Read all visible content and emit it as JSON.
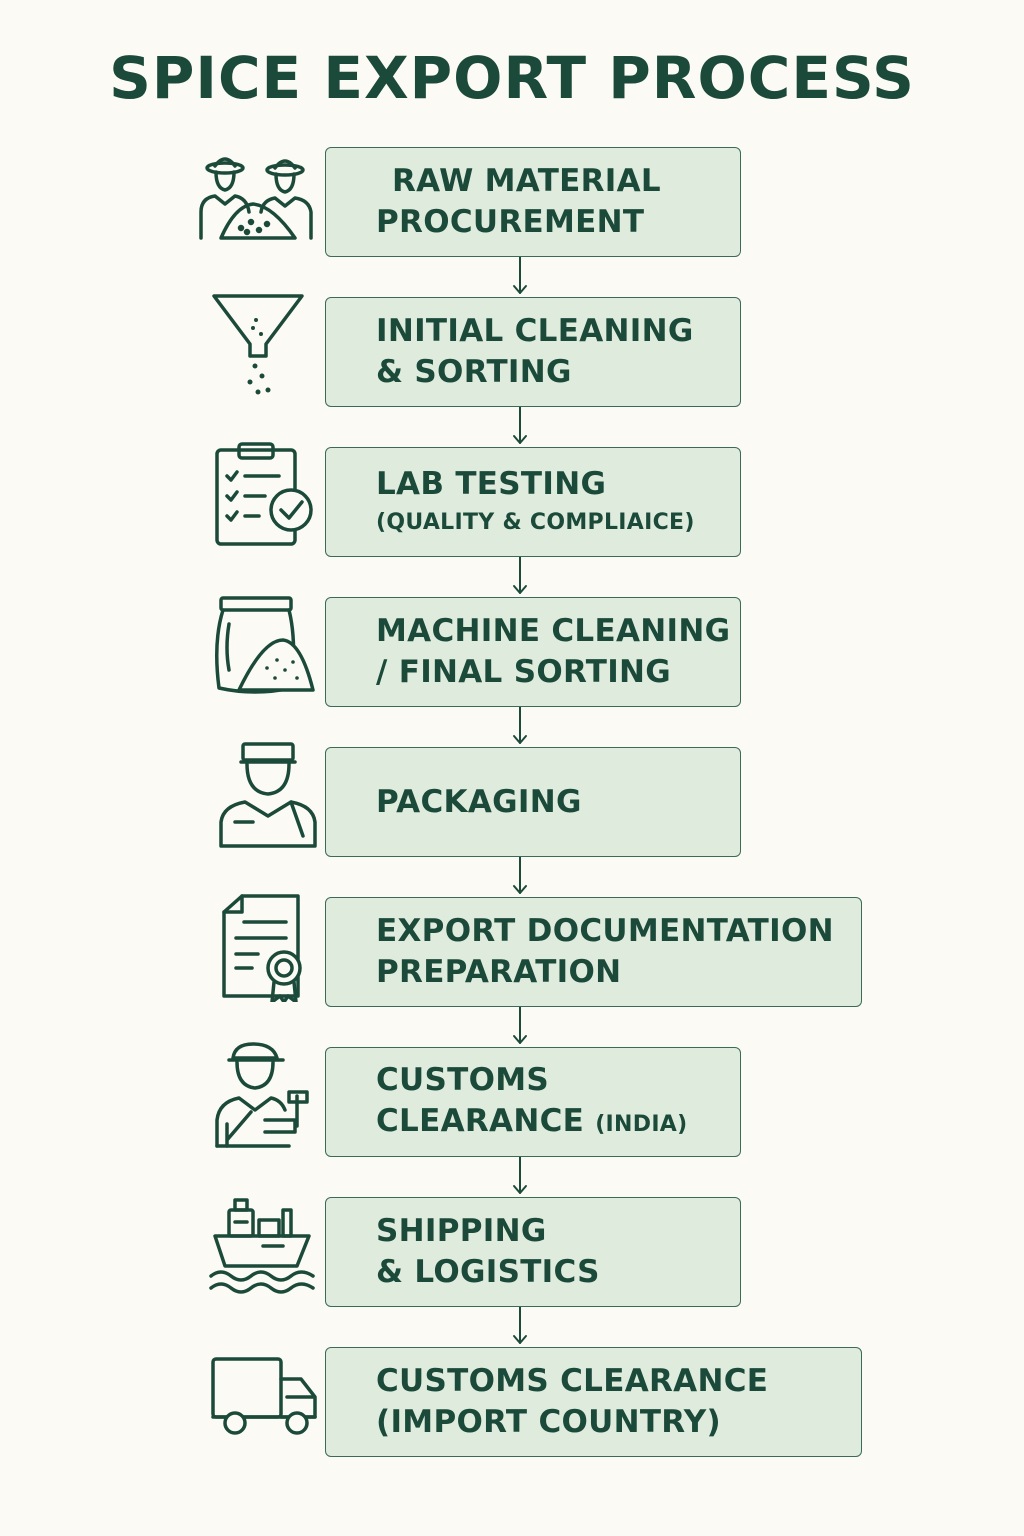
{
  "title": "SPICE EXPORT PROCESS",
  "colors": {
    "background": "#fbfaf4",
    "box_fill": "#dfecdd",
    "box_border": "#3c6a58",
    "ink": "#1c4a3a"
  },
  "steps": [
    {
      "icon": "farmers-harvest-icon",
      "line1": "RAW MATERIAL",
      "line2": "PROCUREMENT"
    },
    {
      "icon": "funnel-sieve-icon",
      "line1": "INITIAL CLEANING",
      "line2": "& SORTING"
    },
    {
      "icon": "clipboard-checklist-icon",
      "line1": "LAB TESTING",
      "line2": "(QUALITY & COMPLIAICE)"
    },
    {
      "icon": "spice-sack-icon",
      "line1": "MACHINE CLEANING",
      "line2": "/ FINAL SORTING"
    },
    {
      "icon": "packaging-worker-icon",
      "line1": "PACKAGING"
    },
    {
      "icon": "certificate-document-icon",
      "line1": "EXPORT DOCUMENTATION",
      "line2": "PREPARATION"
    },
    {
      "icon": "customs-officer-icon",
      "line1": "CUSTOMS",
      "line2": "CLEARANCE",
      "line2_suffix": "(INDIA)"
    },
    {
      "icon": "cargo-ship-icon",
      "line1": "SHIPPING",
      "line2": "& LOGISTICS"
    },
    {
      "icon": "delivery-truck-icon",
      "line1": "CUSTOMS CLEARANCE",
      "line2": "(IMPORT COUNTRY)"
    }
  ]
}
